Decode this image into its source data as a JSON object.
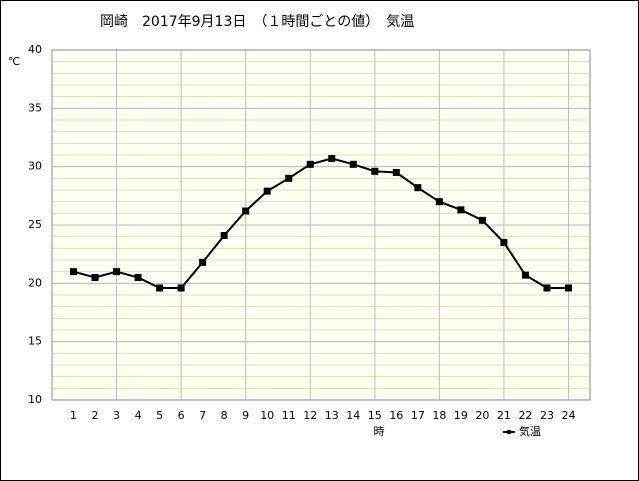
{
  "chart_data": {
    "type": "line",
    "title": "岡崎　2017年9月13日　（１時間ごとの値）　気温",
    "y_unit": "℃",
    "x_label": "時",
    "x": [
      1,
      2,
      3,
      4,
      5,
      6,
      7,
      8,
      9,
      10,
      11,
      12,
      13,
      14,
      15,
      16,
      17,
      18,
      19,
      20,
      21,
      22,
      23,
      24
    ],
    "xlim": [
      0,
      25
    ],
    "xticks": [
      1,
      2,
      3,
      4,
      5,
      6,
      7,
      8,
      9,
      10,
      11,
      12,
      13,
      14,
      15,
      16,
      17,
      18,
      19,
      20,
      21,
      22,
      23,
      24
    ],
    "ylim": [
      10,
      40
    ],
    "yticks": [
      10,
      15,
      20,
      25,
      30,
      35,
      40
    ],
    "grid": true,
    "legend": "bottom-right",
    "series": [
      {
        "name": "気温",
        "color": "#000000",
        "values": [
          21.0,
          20.5,
          21.0,
          20.5,
          19.6,
          19.6,
          21.8,
          24.1,
          26.2,
          27.9,
          29.0,
          30.2,
          30.7,
          30.2,
          29.6,
          29.5,
          28.2,
          27.0,
          26.3,
          25.4,
          23.5,
          20.7,
          19.6,
          19.6
        ]
      }
    ]
  }
}
